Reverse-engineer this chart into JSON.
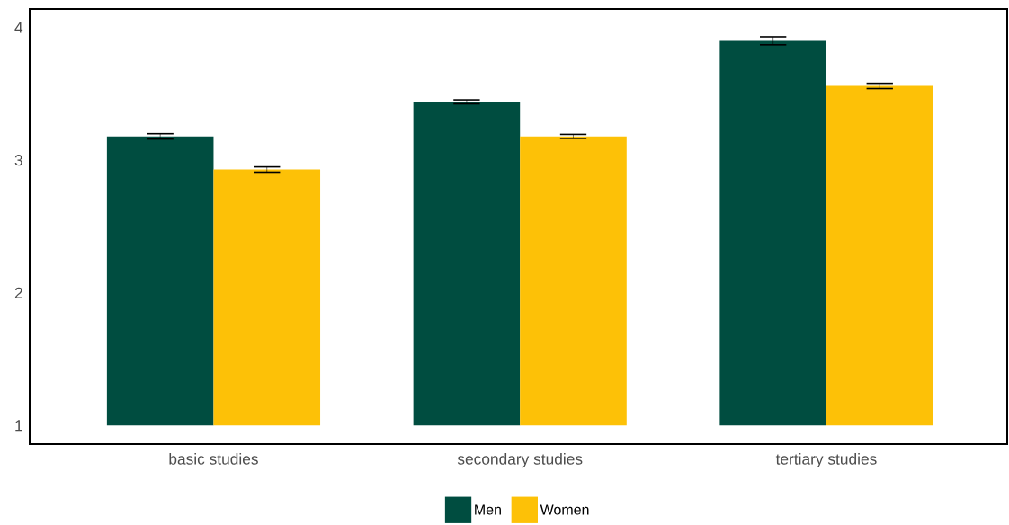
{
  "chart_data": {
    "type": "bar",
    "categories": [
      "basic studies",
      "secondary studies",
      "tertiary studies"
    ],
    "series": [
      {
        "name": "Men",
        "color": "#004d40",
        "base": [
          1,
          1,
          1
        ],
        "values": [
          2.18,
          2.44,
          2.9
        ],
        "errors": [
          0.02,
          0.015,
          0.03
        ]
      },
      {
        "name": "Women",
        "color": "#fdc107",
        "base": [
          1,
          1,
          1
        ],
        "values": [
          1.93,
          2.18,
          2.56
        ],
        "errors": [
          0.02,
          0.015,
          0.02
        ]
      }
    ],
    "ylim": [
      0.86,
      4.14
    ],
    "yticks": [
      1,
      2,
      3,
      4
    ],
    "grid": false,
    "legend": "bottom"
  }
}
